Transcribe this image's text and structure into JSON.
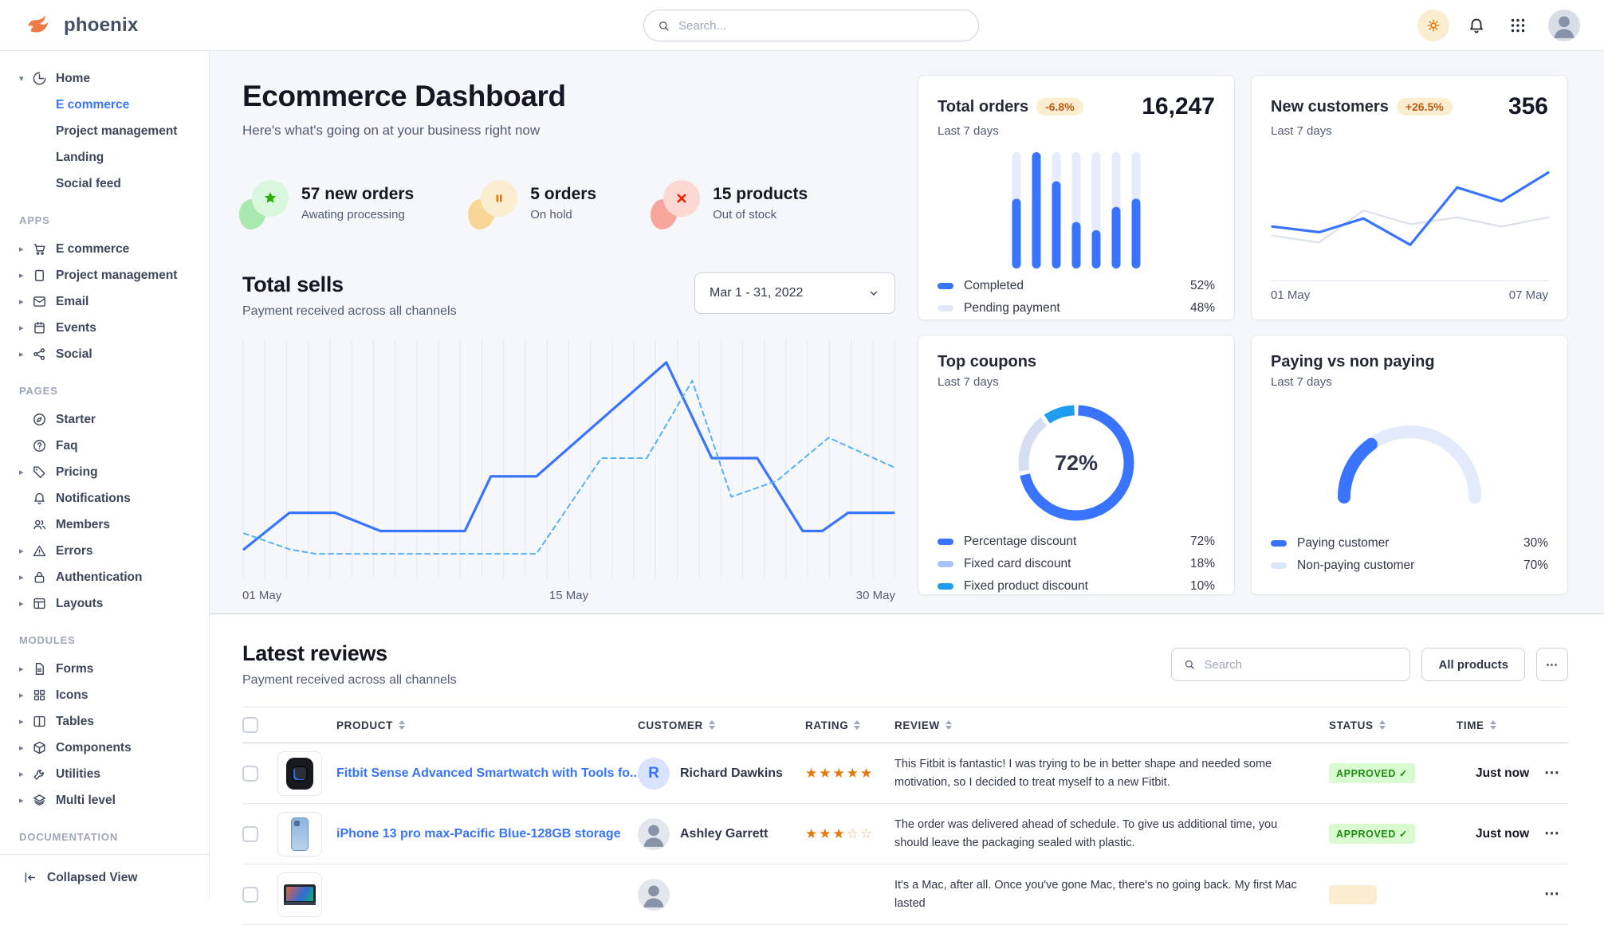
{
  "brand": {
    "name": "phoenix"
  },
  "header": {
    "search_placeholder": "Search...",
    "icons": [
      "sun-icon",
      "bell-icon",
      "grid-9-icon",
      "user-avatar"
    ]
  },
  "colors": {
    "primary": "#3874ff",
    "info": "#1f9ced",
    "warning_text": "#bc5a12",
    "warning_bg": "#fbeed0",
    "success_text": "#1c8c11",
    "success_bg": "#d9fbd0",
    "star": "#e5780b",
    "page_bg": "#f5f7fa"
  },
  "sidebar": {
    "sections": [
      {
        "label": "",
        "items": [
          {
            "label": "Home",
            "icon": "pie",
            "caret": "down",
            "children": [
              {
                "label": "E commerce",
                "active": true
              },
              {
                "label": "Project management"
              },
              {
                "label": "Landing"
              },
              {
                "label": "Social feed"
              }
            ]
          }
        ]
      },
      {
        "label": "APPS",
        "items": [
          {
            "label": "E commerce",
            "icon": "cart",
            "caret": "right"
          },
          {
            "label": "Project management",
            "icon": "clipboard",
            "caret": "right"
          },
          {
            "label": "Email",
            "icon": "mail",
            "caret": "right"
          },
          {
            "label": "Events",
            "icon": "calendar",
            "caret": "right"
          },
          {
            "label": "Social",
            "icon": "share",
            "caret": "right"
          }
        ]
      },
      {
        "label": "PAGES",
        "items": [
          {
            "label": "Starter",
            "icon": "compass"
          },
          {
            "label": "Faq",
            "icon": "help"
          },
          {
            "label": "Pricing",
            "icon": "tag",
            "caret": "right"
          },
          {
            "label": "Notifications",
            "icon": "bell"
          },
          {
            "label": "Members",
            "icon": "users"
          },
          {
            "label": "Errors",
            "icon": "alert",
            "caret": "right"
          },
          {
            "label": "Authentication",
            "icon": "lock",
            "caret": "right"
          },
          {
            "label": "Layouts",
            "icon": "layout",
            "caret": "right"
          }
        ]
      },
      {
        "label": "MODULES",
        "items": [
          {
            "label": "Forms",
            "icon": "file",
            "caret": "right"
          },
          {
            "label": "Icons",
            "icon": "gridic",
            "caret": "right"
          },
          {
            "label": "Tables",
            "icon": "tableic",
            "caret": "right"
          },
          {
            "label": "Components",
            "icon": "package",
            "caret": "right"
          },
          {
            "label": "Utilities",
            "icon": "tool",
            "caret": "right"
          },
          {
            "label": "Multi level",
            "icon": "layers",
            "caret": "right"
          }
        ]
      },
      {
        "label": "DOCUMENTATION",
        "items": []
      }
    ],
    "footer_label": "Collapsed View"
  },
  "page": {
    "title": "Ecommerce Dashboard",
    "subtitle": "Here's what's going on at your business right now"
  },
  "stats": [
    {
      "value": "57 new orders",
      "caption": "Awating processing",
      "icon": "star-solid",
      "theme": "green"
    },
    {
      "value": "5 orders",
      "caption": "On hold",
      "icon": "pause-solid",
      "theme": "orange"
    },
    {
      "value": "15 products",
      "caption": "Out of stock",
      "icon": "x-solid",
      "theme": "red"
    }
  ],
  "sells": {
    "title": "Total sells",
    "subtitle": "Payment received across all channels",
    "date_range": "Mar 1 - 31, 2022"
  },
  "cards": {
    "total_orders": {
      "title": "Total orders",
      "badge": "-6.8%",
      "period": "Last 7 days",
      "value": "16,247",
      "legend": [
        {
          "label": "Completed",
          "value": "52%",
          "color": "#3874ff"
        },
        {
          "label": "Pending payment",
          "value": "48%",
          "color": "#e2e8f8"
        }
      ]
    },
    "new_customers": {
      "title": "New customers",
      "badge": "+26.5%",
      "period": "Last 7 days",
      "value": "356"
    },
    "top_coupons": {
      "title": "Top coupons",
      "period": "Last 7 days",
      "legend": [
        {
          "label": "Percentage discount",
          "value": "72%",
          "color": "#3874ff"
        },
        {
          "label": "Fixed card discount",
          "value": "18%",
          "color": "#a9c1fd"
        },
        {
          "label": "Fixed product discount",
          "value": "10%",
          "color": "#1f9ced"
        }
      ]
    },
    "paying": {
      "title": "Paying vs non paying",
      "period": "Last 7 days",
      "legend": [
        {
          "label": "Paying customer",
          "value": "30%",
          "color": "#3874ff"
        },
        {
          "label": "Non-paying customer",
          "value": "70%",
          "color": "#dbe5fb"
        }
      ]
    }
  },
  "chart_data": [
    {
      "id": "total-sells",
      "type": "line",
      "title": "Total sells",
      "x_ticks": [
        "01 May",
        "15 May",
        "30 May"
      ],
      "ylim": [
        0,
        100
      ],
      "grid": "vertical",
      "grid_count": 31,
      "series": [
        {
          "name": "sells-current",
          "style": "solid",
          "color": "#3874ff",
          "points": [
            [
              0,
              10
            ],
            [
              7,
              26
            ],
            [
              14,
              26
            ],
            [
              21,
              18
            ],
            [
              34,
              18
            ],
            [
              38,
              42
            ],
            [
              45,
              42
            ],
            [
              65,
              92
            ],
            [
              72,
              50
            ],
            [
              79,
              50
            ],
            [
              86,
              18
            ],
            [
              89,
              18
            ],
            [
              93,
              26
            ],
            [
              100,
              26
            ]
          ]
        },
        {
          "name": "sells-previous",
          "style": "dashed",
          "color": "#55b2f6",
          "points": [
            [
              0,
              17
            ],
            [
              7,
              10
            ],
            [
              11,
              8
            ],
            [
              45,
              8
            ],
            [
              55,
              50
            ],
            [
              62,
              50
            ],
            [
              69,
              84
            ],
            [
              75,
              33
            ],
            [
              82,
              40
            ],
            [
              90,
              59
            ],
            [
              100,
              46
            ]
          ]
        }
      ]
    },
    {
      "id": "total-orders",
      "type": "bar",
      "categories": [
        "1",
        "2",
        "3",
        "4",
        "5",
        "6",
        "7"
      ],
      "values": [
        60,
        100,
        75,
        40,
        33,
        53,
        60
      ],
      "max": 100,
      "bar_color": "#3874ff",
      "track_color": "#e6ecfb"
    },
    {
      "id": "new-customers",
      "type": "line",
      "x_ticks": [
        "01 May",
        "07 May"
      ],
      "ylim": [
        0,
        100
      ],
      "series": [
        {
          "name": "customers-current",
          "style": "solid",
          "color": "#3874ff",
          "points": [
            [
              0,
              38
            ],
            [
              17,
              33
            ],
            [
              33,
              45
            ],
            [
              50,
              22
            ],
            [
              67,
              72
            ],
            [
              83,
              60
            ],
            [
              100,
              85
            ]
          ]
        },
        {
          "name": "customers-previous",
          "style": "solid",
          "color": "#dde2ec",
          "points": [
            [
              0,
              30
            ],
            [
              17,
              24
            ],
            [
              33,
              52
            ],
            [
              50,
              40
            ],
            [
              67,
              46
            ],
            [
              83,
              38
            ],
            [
              100,
              46
            ]
          ]
        }
      ]
    },
    {
      "id": "top-coupons",
      "type": "donut",
      "center_label": "72%",
      "slices": [
        {
          "label": "Percentage discount",
          "value": 72,
          "color": "#3874ff"
        },
        {
          "label": "Fixed card discount",
          "value": 18,
          "color": "#d6def0"
        },
        {
          "label": "Fixed product discount",
          "value": 10,
          "color": "#1f9ced"
        }
      ]
    },
    {
      "id": "paying-gauge",
      "type": "gauge",
      "segments": [
        {
          "label": "Paying customer",
          "value": 30,
          "color": "#3874ff"
        },
        {
          "label": "Non-paying customer",
          "value": 70,
          "color": "#e2eafc"
        }
      ]
    }
  ],
  "reviews": {
    "title": "Latest reviews",
    "subtitle": "Payment received across all channels",
    "search_placeholder": "Search",
    "filter_button": "All products",
    "more_button": "...",
    "columns": [
      "PRODUCT",
      "CUSTOMER",
      "RATING",
      "REVIEW",
      "STATUS",
      "TIME"
    ],
    "rows": [
      {
        "product": "Fitbit Sense Advanced Smartwatch with Tools fo...",
        "product_image": "smartwatch",
        "customer": "Richard Dawkins",
        "avatar": {
          "type": "initial",
          "text": "R"
        },
        "rating": 5,
        "review": "This Fitbit is fantastic! I was trying to be in better shape and needed some motivation, so I decided to treat myself to a new Fitbit.",
        "status": "APPROVED",
        "status_type": "success",
        "time": "Just now"
      },
      {
        "product": "iPhone 13 pro max-Pacific Blue-128GB storage",
        "product_image": "iphone",
        "customer": "Ashley Garrett",
        "avatar": {
          "type": "photo"
        },
        "rating": 3,
        "review": "The order was delivered ahead of schedule. To give us additional time, you should leave the packaging sealed with plastic.",
        "status": "APPROVED",
        "status_type": "success",
        "time": "Just now"
      },
      {
        "product": "",
        "product_image": "macbook",
        "customer": "",
        "avatar": {
          "type": "photo"
        },
        "rating": 0,
        "review": "It's a Mac, after all. Once you've gone Mac, there's no going back. My first Mac lasted",
        "status": "",
        "status_type": "warning",
        "time": ""
      }
    ]
  }
}
